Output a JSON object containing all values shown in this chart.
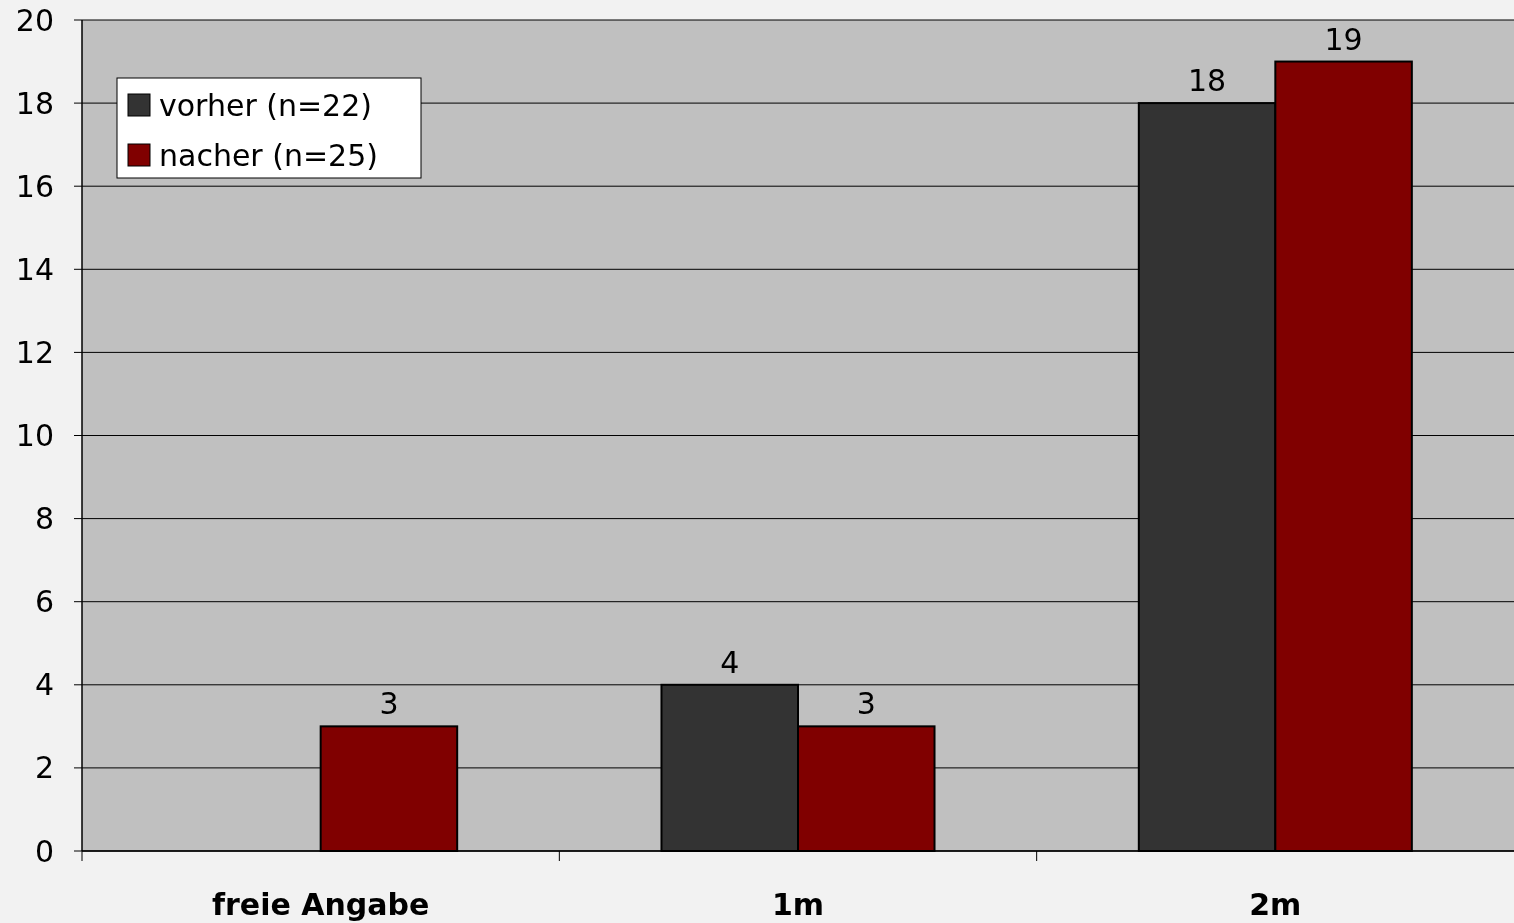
{
  "chart_data": {
    "type": "bar",
    "categories": [
      "freie Angabe",
      "1m",
      "2m"
    ],
    "series": [
      {
        "name": "vorher (n=22)",
        "color": "#333333",
        "values": [
          null,
          4,
          18
        ]
      },
      {
        "name": "nacher (n=25)",
        "color": "#800000",
        "values": [
          3,
          3,
          19
        ]
      }
    ],
    "ylim": [
      0,
      20
    ],
    "yticks": [
      0,
      2,
      4,
      6,
      8,
      10,
      12,
      14,
      16,
      18,
      20
    ],
    "grid": "y",
    "legend": "top left",
    "data_labels": true
  }
}
